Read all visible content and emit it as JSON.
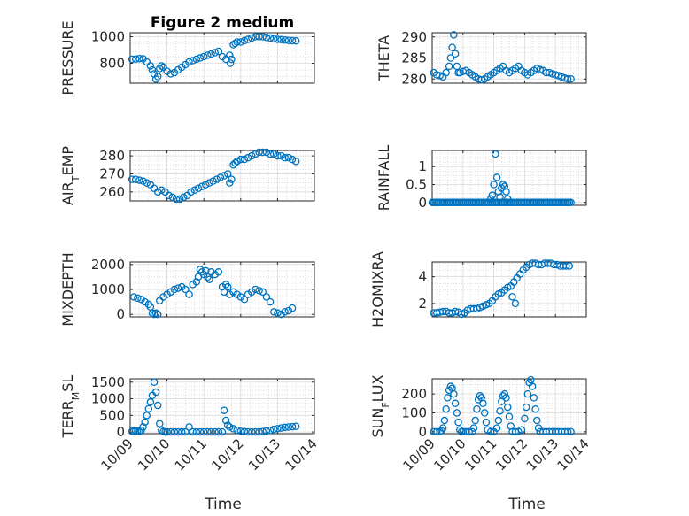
{
  "figure": {
    "title": "Figure 2 medium",
    "marker_color": "#0072BD",
    "axis_color": "#262626"
  },
  "chart_data": [
    {
      "type": "scatter",
      "title": "Figure 2 medium",
      "ylabel_parts": [
        {
          "t": "PRESSURE"
        }
      ],
      "xlim": [
        0,
        5
      ],
      "ylim": [
        650,
        1030
      ],
      "yticks": [
        800,
        1000
      ],
      "ytick_labels": [
        "800",
        "1000"
      ],
      "x": [
        0.05,
        0.15,
        0.25,
        0.35,
        0.45,
        0.55,
        0.6,
        0.65,
        0.7,
        0.75,
        0.8,
        0.85,
        0.9,
        1.0,
        1.1,
        1.2,
        1.3,
        1.4,
        1.5,
        1.6,
        1.7,
        1.8,
        1.9,
        2.0,
        2.1,
        2.2,
        2.3,
        2.4,
        2.5,
        2.6,
        2.7,
        2.72,
        2.75,
        2.8,
        2.85,
        2.9,
        3.0,
        3.1,
        3.2,
        3.3,
        3.4,
        3.5,
        3.6,
        3.7,
        3.8,
        3.9,
        4.0,
        4.1,
        4.2,
        4.3,
        4.4,
        4.5
      ],
      "y": [
        830,
        832,
        835,
        833,
        810,
        780,
        750,
        720,
        680,
        700,
        760,
        780,
        770,
        740,
        720,
        730,
        750,
        770,
        790,
        810,
        820,
        830,
        840,
        850,
        860,
        870,
        880,
        890,
        850,
        830,
        860,
        800,
        830,
        940,
        950,
        960,
        960,
        970,
        980,
        990,
        1000,
        1000,
        1000,
        995,
        990,
        985,
        980,
        978,
        975,
        972,
        970,
        968
      ]
    },
    {
      "type": "scatter",
      "ylabel_parts": [
        {
          "t": "THETA"
        }
      ],
      "xlim": [
        0,
        5
      ],
      "ylim": [
        279,
        291
      ],
      "yticks": [
        280,
        285,
        290
      ],
      "ytick_labels": [
        "280",
        "285",
        "290"
      ],
      "x": [
        0.05,
        0.15,
        0.25,
        0.35,
        0.45,
        0.55,
        0.6,
        0.65,
        0.7,
        0.75,
        0.8,
        0.85,
        0.9,
        1.0,
        1.1,
        1.2,
        1.3,
        1.4,
        1.5,
        1.6,
        1.7,
        1.8,
        1.9,
        2.0,
        2.1,
        2.2,
        2.3,
        2.4,
        2.5,
        2.6,
        2.7,
        2.8,
        2.9,
        3.0,
        3.1,
        3.2,
        3.3,
        3.4,
        3.5,
        3.6,
        3.7,
        3.8,
        3.9,
        4.0,
        4.1,
        4.2,
        4.3,
        4.4,
        4.5
      ],
      "y": [
        281.5,
        281,
        280.8,
        280.5,
        281.5,
        283,
        285,
        287.5,
        290.5,
        286,
        283,
        281.5,
        281.5,
        281.8,
        282,
        281.5,
        281,
        280.5,
        280,
        279.8,
        280,
        280.5,
        281,
        281.5,
        282,
        282.5,
        283,
        282,
        281.5,
        282,
        282.5,
        283,
        282,
        281.5,
        281,
        281.5,
        282,
        282.5,
        282.2,
        282,
        281.5,
        281.5,
        281.2,
        281,
        280.8,
        280.5,
        280.2,
        280,
        280
      ]
    },
    {
      "type": "scatter",
      "ylabel_parts": [
        {
          "t": "AIR"
        },
        {
          "t": "T",
          "sub": true
        },
        {
          "t": "EMP"
        }
      ],
      "xlim": [
        0,
        5
      ],
      "ylim": [
        255,
        283
      ],
      "yticks": [
        260,
        270,
        280
      ],
      "ytick_labels": [
        "260",
        "270",
        "280"
      ],
      "x": [
        0.05,
        0.15,
        0.25,
        0.35,
        0.45,
        0.55,
        0.65,
        0.75,
        0.85,
        0.95,
        1.05,
        1.15,
        1.25,
        1.35,
        1.45,
        1.55,
        1.65,
        1.75,
        1.85,
        1.95,
        2.05,
        2.15,
        2.25,
        2.35,
        2.45,
        2.55,
        2.65,
        2.7,
        2.75,
        2.8,
        2.85,
        2.9,
        3.0,
        3.1,
        3.2,
        3.3,
        3.4,
        3.5,
        3.6,
        3.7,
        3.8,
        3.9,
        4.0,
        4.1,
        4.2,
        4.3,
        4.4,
        4.5
      ],
      "y": [
        267,
        267,
        266.5,
        266,
        265,
        264,
        262,
        260,
        261,
        260,
        258,
        257,
        256,
        256,
        257,
        258,
        260,
        261,
        262,
        263,
        264,
        265,
        266,
        267,
        268,
        269,
        270,
        265,
        267,
        275,
        276,
        277,
        278,
        278,
        279,
        280,
        281,
        282,
        282,
        282,
        281,
        281,
        280,
        280,
        279,
        279,
        278,
        277
      ]
    },
    {
      "type": "scatter",
      "ylabel_parts": [
        {
          "t": "RAINFALL"
        }
      ],
      "xlim": [
        0,
        5
      ],
      "ylim": [
        -0.08,
        1.45
      ],
      "yticks": [
        0,
        0.5,
        1
      ],
      "ytick_labels": [
        "0",
        "0.5",
        "1"
      ],
      "x": [
        0.0,
        0.05,
        0.1,
        0.15,
        0.2,
        0.25,
        0.3,
        0.35,
        0.4,
        0.45,
        0.5,
        0.55,
        0.6,
        0.65,
        0.7,
        0.75,
        0.8,
        0.85,
        0.9,
        0.95,
        1.0,
        1.05,
        1.1,
        1.15,
        1.2,
        1.25,
        1.3,
        1.35,
        1.4,
        1.45,
        1.5,
        1.55,
        1.6,
        1.65,
        1.7,
        1.75,
        1.8,
        1.85,
        1.9,
        1.95,
        2.0,
        2.05,
        2.1,
        2.15,
        2.2,
        2.25,
        2.3,
        2.35,
        2.4,
        2.45,
        2.5,
        2.55,
        2.6,
        2.65,
        2.7,
        2.75,
        2.8,
        2.85,
        2.9,
        2.95,
        3.0,
        3.05,
        3.1,
        3.15,
        3.2,
        3.25,
        3.3,
        3.35,
        3.4,
        3.45,
        3.5,
        3.55,
        3.6,
        3.65,
        3.7,
        3.75,
        3.8,
        3.85,
        3.9,
        3.95,
        4.0,
        4.05,
        4.1,
        4.15,
        4.2,
        4.25,
        4.3,
        4.35,
        4.4,
        4.45,
        4.5,
        1.9,
        1.95,
        2.0,
        2.05,
        2.1,
        2.15,
        2.2,
        2.25,
        2.3,
        2.35,
        2.4,
        2.45
      ],
      "y": [
        0,
        0,
        0,
        0,
        0,
        0,
        0,
        0,
        0,
        0,
        0,
        0,
        0,
        0,
        0,
        0,
        0,
        0,
        0,
        0,
        0,
        0,
        0,
        0,
        0,
        0,
        0,
        0,
        0,
        0,
        0,
        0,
        0,
        0,
        0,
        0,
        0,
        0,
        0,
        0,
        0,
        0,
        0,
        0,
        0,
        0,
        0,
        0,
        0,
        0,
        0,
        0,
        0,
        0,
        0,
        0,
        0,
        0,
        0,
        0,
        0,
        0,
        0,
        0,
        0,
        0,
        0,
        0,
        0,
        0,
        0,
        0,
        0,
        0,
        0,
        0,
        0,
        0,
        0,
        0,
        0,
        0,
        0,
        0,
        0,
        0,
        0,
        0,
        0,
        0,
        0,
        0.1,
        0.2,
        0.5,
        1.35,
        0.7,
        0.3,
        0.15,
        0.4,
        0.5,
        0.45,
        0.3,
        0.1
      ]
    },
    {
      "type": "scatter",
      "ylabel_parts": [
        {
          "t": "MIXDEPTH"
        }
      ],
      "xlim": [
        0,
        5
      ],
      "ylim": [
        -100,
        2100
      ],
      "yticks": [
        0,
        1000,
        2000
      ],
      "ytick_labels": [
        "0",
        "1000",
        "2000"
      ],
      "x": [
        0.1,
        0.2,
        0.3,
        0.4,
        0.5,
        0.55,
        0.6,
        0.65,
        0.7,
        0.75,
        0.8,
        0.9,
        1.0,
        1.1,
        1.2,
        1.3,
        1.4,
        1.5,
        1.6,
        1.7,
        1.8,
        1.85,
        1.9,
        1.95,
        2.0,
        2.05,
        2.1,
        2.15,
        2.2,
        2.3,
        2.4,
        2.5,
        2.55,
        2.6,
        2.65,
        2.7,
        2.8,
        2.9,
        3.0,
        3.1,
        3.2,
        3.3,
        3.4,
        3.5,
        3.6,
        3.7,
        3.8,
        3.9,
        4.0,
        4.1,
        4.2,
        4.3,
        4.4
      ],
      "y": [
        700,
        650,
        600,
        500,
        400,
        300,
        50,
        0,
        50,
        0,
        550,
        700,
        800,
        900,
        1000,
        1050,
        1100,
        1000,
        800,
        1200,
        1300,
        1500,
        1800,
        1700,
        1600,
        1750,
        1500,
        1400,
        1700,
        1600,
        1700,
        1100,
        900,
        1200,
        1100,
        800,
        900,
        800,
        700,
        600,
        800,
        900,
        1000,
        950,
        900,
        700,
        500,
        100,
        50,
        0,
        100,
        150,
        250
      ]
    },
    {
      "type": "scatter",
      "ylabel_parts": [
        {
          "t": "H2OMIXRA"
        }
      ],
      "xlim": [
        0,
        5
      ],
      "ylim": [
        1,
        5.1
      ],
      "yticks": [
        2,
        4
      ],
      "ytick_labels": [
        "2",
        "4"
      ],
      "x": [
        0.05,
        0.15,
        0.25,
        0.35,
        0.45,
        0.55,
        0.65,
        0.75,
        0.85,
        0.95,
        1.05,
        1.15,
        1.25,
        1.35,
        1.45,
        1.55,
        1.65,
        1.75,
        1.85,
        1.95,
        2.05,
        2.15,
        2.25,
        2.35,
        2.45,
        2.55,
        2.65,
        2.75,
        2.85,
        2.95,
        3.05,
        3.15,
        3.25,
        3.35,
        3.45,
        3.55,
        3.65,
        3.75,
        3.85,
        3.95,
        4.05,
        4.15,
        4.25,
        4.35,
        4.45,
        2.6,
        2.7
      ],
      "y": [
        1.3,
        1.3,
        1.35,
        1.4,
        1.4,
        1.3,
        1.3,
        1.4,
        1.35,
        1.2,
        1.3,
        1.5,
        1.6,
        1.6,
        1.6,
        1.7,
        1.8,
        1.9,
        2.0,
        2.2,
        2.5,
        2.7,
        2.8,
        3.0,
        3.2,
        3.3,
        3.6,
        3.9,
        4.2,
        4.5,
        4.7,
        4.9,
        5.0,
        5.0,
        4.9,
        4.9,
        5.0,
        5.0,
        5.0,
        4.9,
        4.9,
        4.8,
        4.8,
        4.8,
        4.8,
        2.5,
        2.0
      ]
    },
    {
      "type": "scatter",
      "ylabel_parts": [
        {
          "t": "TERR"
        },
        {
          "t": "M",
          "sub": true
        },
        {
          "t": "SL"
        }
      ],
      "xlim": [
        0,
        5
      ],
      "ylim": [
        -50,
        1600
      ],
      "yticks": [
        0,
        500,
        1000,
        1500
      ],
      "ytick_labels": [
        "0",
        "500",
        "1000",
        "1500"
      ],
      "x": [
        0.05,
        0.1,
        0.15,
        0.2,
        0.25,
        0.3,
        0.35,
        0.4,
        0.45,
        0.5,
        0.55,
        0.6,
        0.65,
        0.7,
        0.75,
        0.8,
        0.85,
        0.9,
        0.95,
        1.0,
        1.1,
        1.2,
        1.3,
        1.4,
        1.5,
        1.6,
        1.7,
        1.8,
        1.9,
        2.0,
        2.1,
        2.2,
        2.3,
        2.4,
        2.5,
        2.55,
        2.6,
        2.65,
        2.7,
        2.8,
        2.9,
        3.0,
        3.1,
        3.2,
        3.3,
        3.4,
        3.5,
        3.6,
        3.7,
        3.8,
        3.9,
        4.0,
        4.1,
        4.2,
        4.3,
        4.4,
        4.5
      ],
      "y": [
        20,
        30,
        40,
        20,
        10,
        50,
        150,
        300,
        500,
        700,
        900,
        1100,
        1500,
        1200,
        800,
        250,
        50,
        10,
        0,
        0,
        0,
        0,
        0,
        0,
        0,
        150,
        0,
        0,
        0,
        0,
        0,
        0,
        0,
        0,
        0,
        650,
        350,
        200,
        150,
        100,
        50,
        20,
        10,
        0,
        0,
        0,
        0,
        10,
        30,
        50,
        80,
        100,
        120,
        140,
        150,
        160,
        170
      ]
    },
    {
      "type": "scatter",
      "ylabel_parts": [
        {
          "t": "SUN"
        },
        {
          "t": "F",
          "sub": true
        },
        {
          "t": "LUX"
        }
      ],
      "xlim": [
        0,
        5
      ],
      "ylim": [
        -10,
        280
      ],
      "yticks": [
        0,
        100,
        200
      ],
      "ytick_labels": [
        "0",
        "100",
        "200"
      ],
      "x": [
        0.05,
        0.15,
        0.25,
        0.3,
        0.35,
        0.4,
        0.45,
        0.5,
        0.55,
        0.6,
        0.65,
        0.7,
        0.75,
        0.8,
        0.85,
        0.9,
        0.95,
        1.0,
        1.1,
        1.2,
        1.3,
        1.35,
        1.4,
        1.45,
        1.5,
        1.55,
        1.6,
        1.65,
        1.7,
        1.75,
        1.8,
        1.9,
        2.0,
        2.1,
        2.15,
        2.2,
        2.25,
        2.3,
        2.35,
        2.4,
        2.45,
        2.5,
        2.55,
        2.6,
        2.7,
        2.8,
        2.9,
        3.0,
        3.05,
        3.1,
        3.15,
        3.2,
        3.25,
        3.3,
        3.35,
        3.4,
        3.45,
        3.5,
        3.6,
        3.7,
        3.8,
        3.9,
        4.0,
        4.1,
        4.2,
        4.3,
        4.4,
        4.5
      ],
      "y": [
        0,
        0,
        0,
        5,
        20,
        60,
        120,
        180,
        220,
        240,
        230,
        200,
        150,
        100,
        50,
        10,
        0,
        0,
        0,
        0,
        0,
        20,
        60,
        120,
        170,
        190,
        180,
        150,
        100,
        50,
        10,
        0,
        0,
        20,
        60,
        110,
        160,
        190,
        200,
        180,
        130,
        80,
        30,
        0,
        0,
        0,
        10,
        70,
        130,
        200,
        260,
        275,
        240,
        180,
        120,
        60,
        20,
        0,
        0,
        0,
        0,
        0,
        0,
        0,
        0,
        0,
        0,
        0
      ]
    }
  ],
  "x_axis": {
    "label": "Time",
    "tick_labels": [
      "10/09",
      "10/10",
      "10/11",
      "10/12",
      "10/13",
      "10/14"
    ]
  }
}
